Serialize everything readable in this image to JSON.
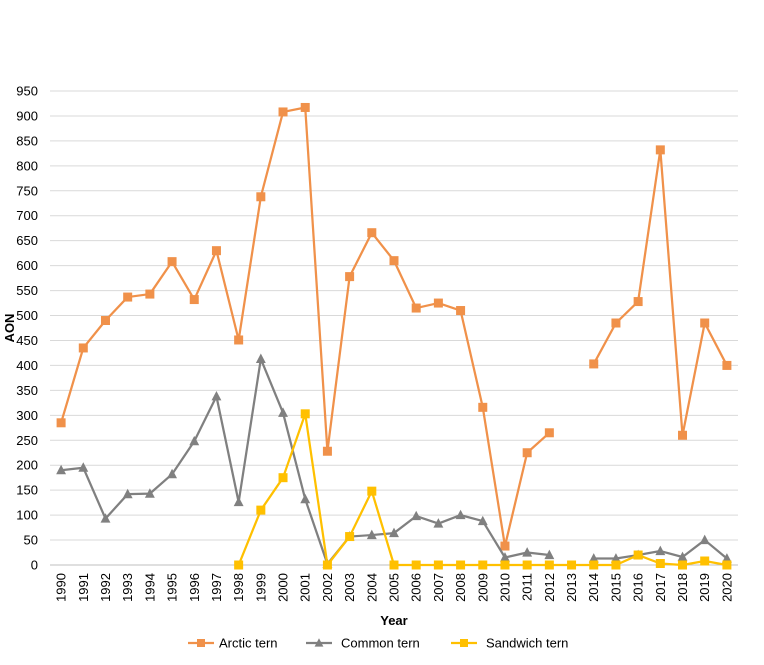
{
  "chart_data": {
    "type": "line",
    "xlabel": "Year",
    "ylabel": "AON",
    "ylim": [
      0,
      950
    ],
    "yticks": [
      "0",
      "50",
      "100",
      "150",
      "200",
      "250",
      "300",
      "350",
      "400",
      "450",
      "500",
      "550",
      "600",
      "650",
      "700",
      "750",
      "800",
      "850",
      "900",
      "950"
    ],
    "categories": [
      "1990",
      "1991",
      "1992",
      "1993",
      "1994",
      "1995",
      "1996",
      "1997",
      "1998",
      "1999",
      "2000",
      "2001",
      "2002",
      "2003",
      "2004",
      "2005",
      "2006",
      "2007",
      "2008",
      "2009",
      "2010",
      "2011",
      "2012",
      "2013",
      "2014",
      "2015",
      "2016",
      "2017",
      "2018",
      "2019",
      "2020"
    ],
    "grid": "horizontal",
    "legend_position": "bottom",
    "series": [
      {
        "name": "Arctic tern",
        "color": "#F0914A",
        "marker": "square",
        "values": [
          285,
          435,
          490,
          537,
          543,
          608,
          532,
          630,
          451,
          738,
          908,
          917,
          228,
          578,
          666,
          610,
          515,
          525,
          510,
          316,
          38,
          225,
          265,
          null,
          403,
          485,
          528,
          832,
          260,
          485,
          400
        ]
      },
      {
        "name": "Common tern",
        "color": "#808080",
        "marker": "triangle",
        "values": [
          190,
          195,
          93,
          142,
          143,
          182,
          248,
          338,
          126,
          413,
          305,
          132,
          2,
          57,
          60,
          64,
          98,
          83,
          100,
          88,
          15,
          25,
          20,
          null,
          13,
          13,
          20,
          28,
          16,
          50,
          13
        ]
      },
      {
        "name": "Sandwich tern",
        "color": "#FFC000",
        "marker": "square",
        "values": [
          null,
          null,
          null,
          null,
          null,
          null,
          null,
          null,
          0,
          110,
          175,
          303,
          0,
          57,
          148,
          0,
          0,
          0,
          0,
          0,
          0,
          0,
          0,
          0,
          0,
          0,
          20,
          3,
          0,
          8,
          0
        ]
      }
    ]
  }
}
